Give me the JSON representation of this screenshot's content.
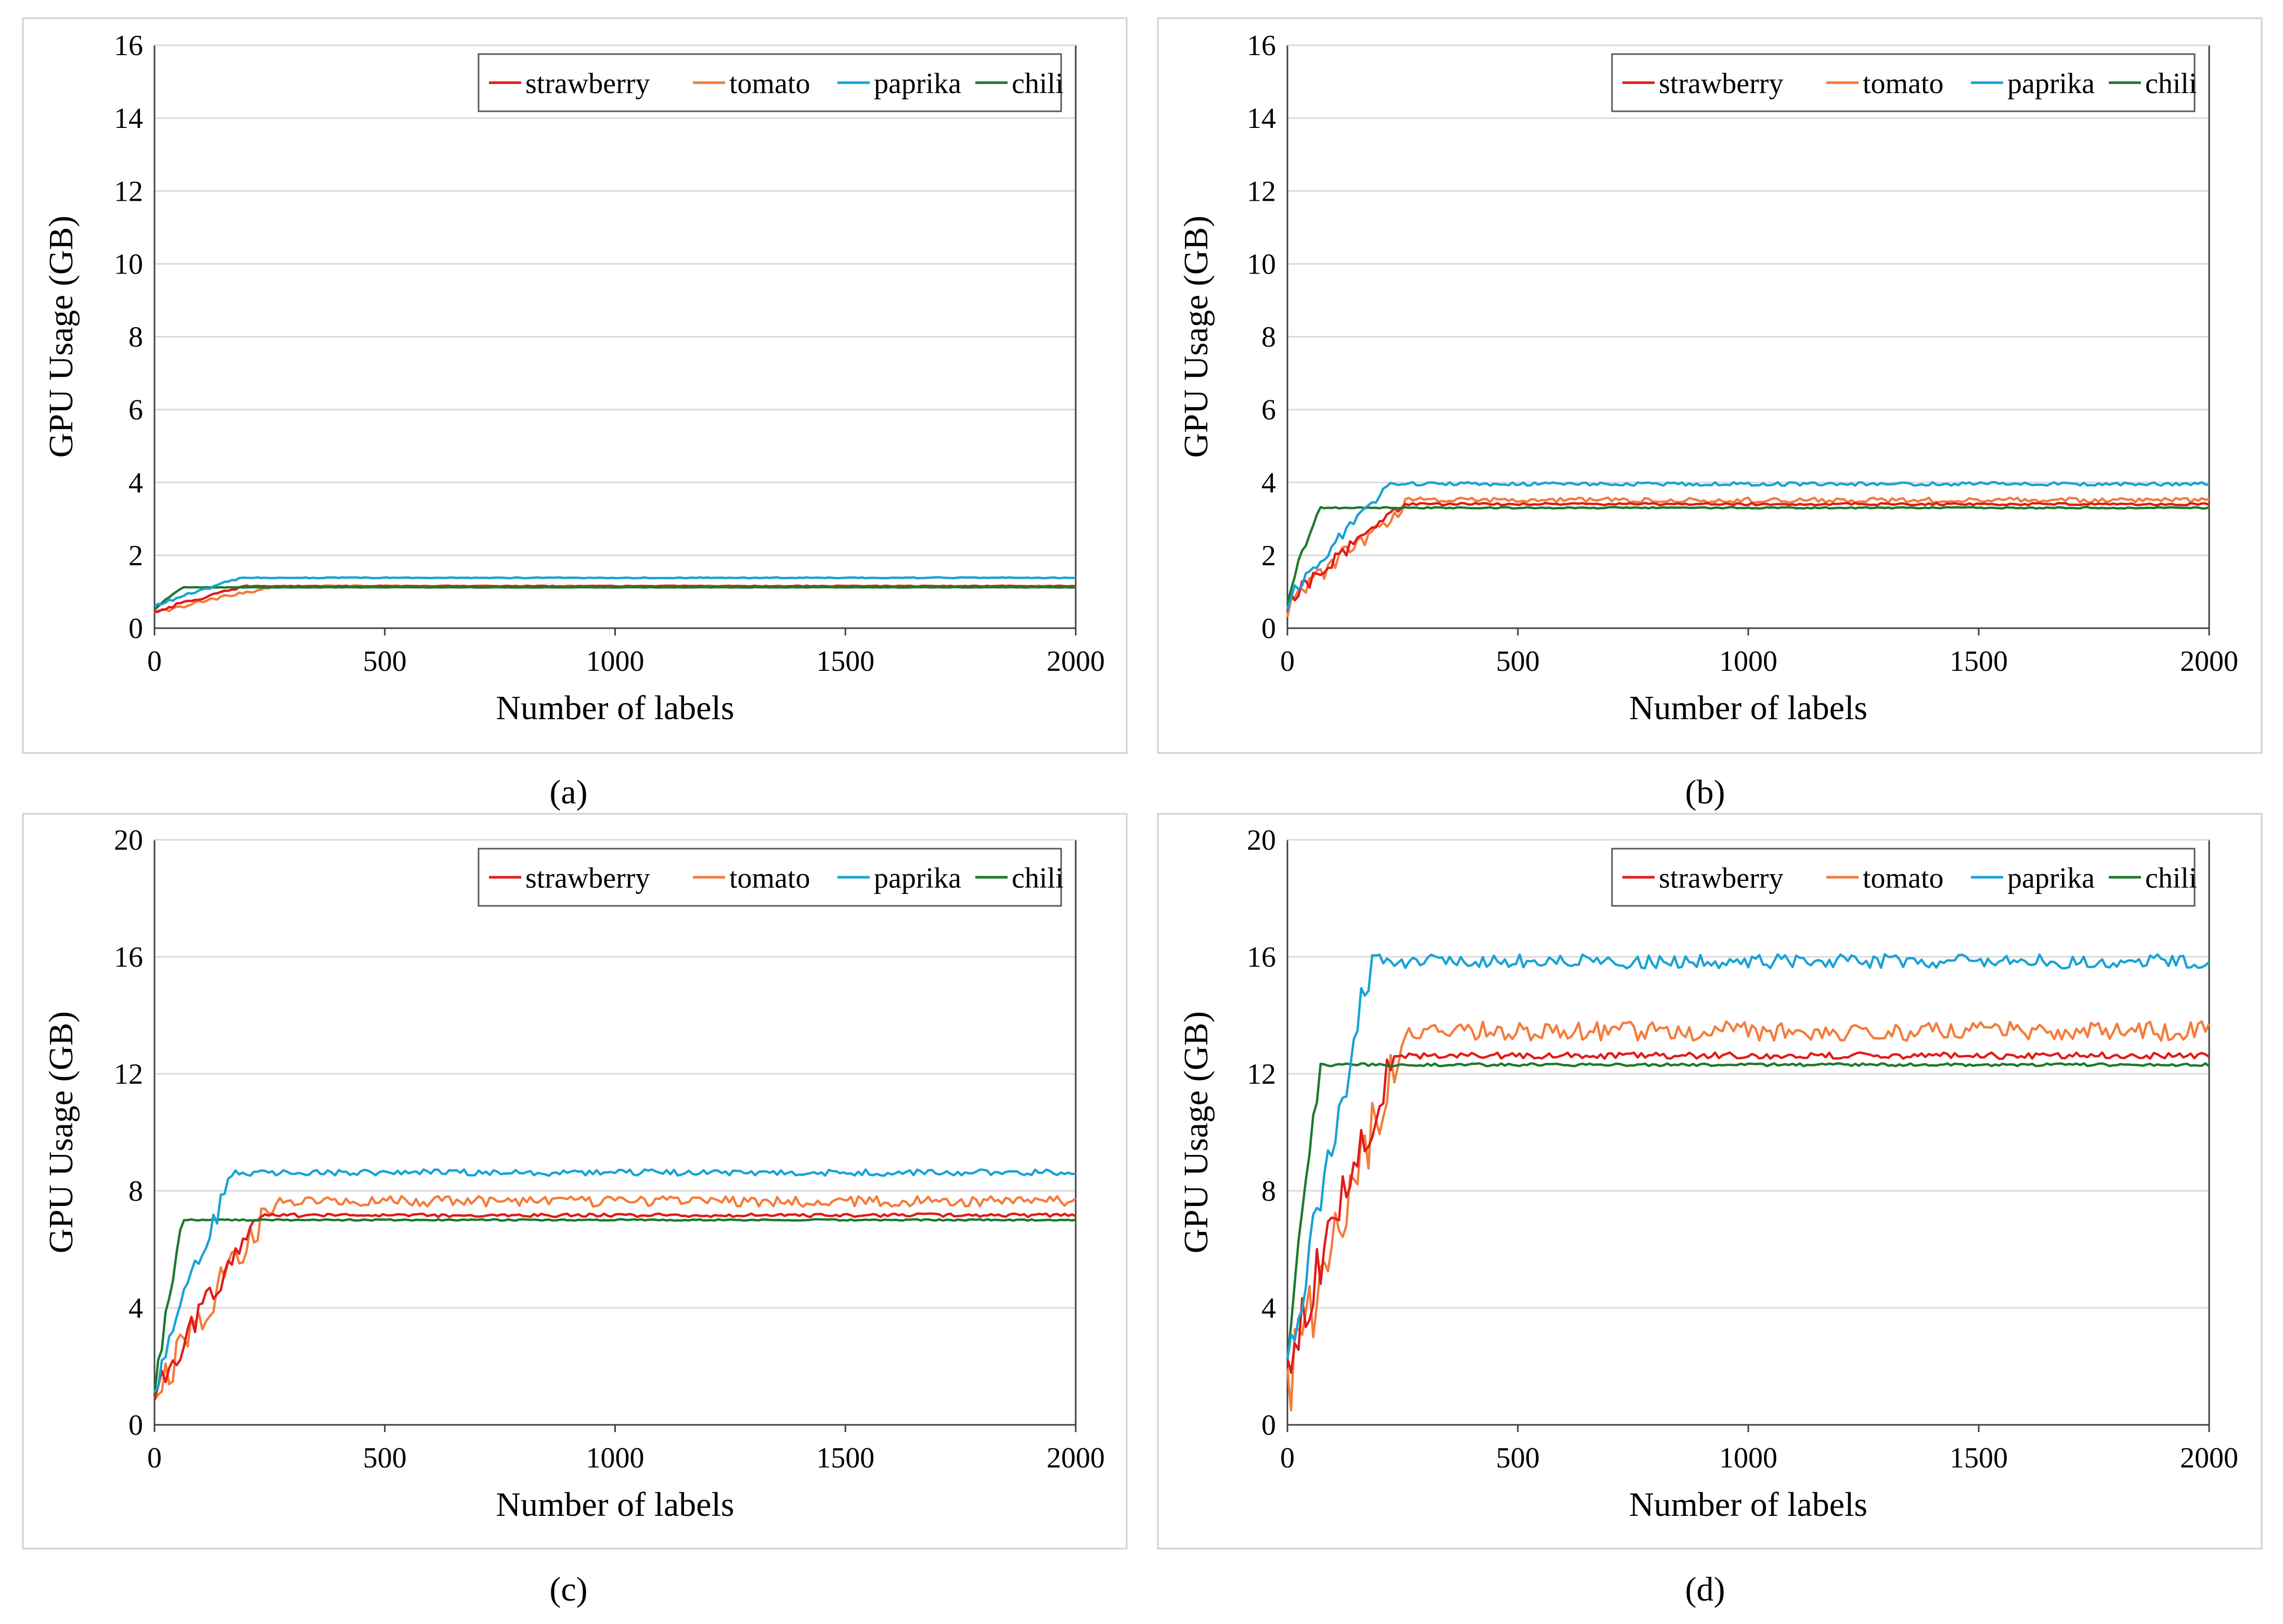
{
  "figure": {
    "panels": [
      "(a)",
      "(b)",
      "(c)",
      "(d)"
    ]
  },
  "colors": {
    "strawberry": "#e01b1b",
    "tomato": "#f47c3c",
    "paprika": "#19a2d6",
    "chili": "#1c7a2a",
    "grid": "#d9d9d9",
    "axis": "#404040",
    "frame": "#d0d0d0"
  },
  "chart_data": [
    {
      "panel": "a",
      "caption": "(a)",
      "type": "line",
      "xlabel": "Number of labels",
      "ylabel": "GPU Usage (GB)",
      "xlim": [
        0,
        2000
      ],
      "ylim": [
        0,
        16
      ],
      "xticks": [
        0,
        500,
        1000,
        1500,
        2000
      ],
      "yticks": [
        0,
        2,
        4,
        6,
        8,
        10,
        12,
        14,
        16
      ],
      "grid": true,
      "legend": "top-right",
      "series": [
        {
          "name": "strawberry",
          "key": "strawberry",
          "start": 0.45,
          "ramp": 200,
          "plateau": 1.15,
          "noise": 0.02,
          "amp": 0.1
        },
        {
          "name": "tomato",
          "key": "tomato",
          "start": 0.4,
          "ramp": 260,
          "plateau": 1.15,
          "noise": 0.03,
          "amp": 0.12
        },
        {
          "name": "paprika",
          "key": "paprika",
          "start": 0.6,
          "ramp": 190,
          "plateau": 1.38,
          "noise": 0.02,
          "amp": 0.1
        },
        {
          "name": "chili",
          "key": "chili",
          "start": 0.5,
          "ramp": 60,
          "plateau": 1.12,
          "noise": 0.01,
          "amp": 0.05
        }
      ]
    },
    {
      "panel": "b",
      "caption": "(b)",
      "type": "line",
      "xlabel": "Number of labels",
      "ylabel": "GPU Usage (GB)",
      "xlim": [
        0,
        2000
      ],
      "ylim": [
        0,
        16
      ],
      "xticks": [
        0,
        500,
        1000,
        1500,
        2000
      ],
      "yticks": [
        0,
        2,
        4,
        6,
        8,
        10,
        12,
        14,
        16
      ],
      "grid": true,
      "legend": "top-right",
      "series": [
        {
          "name": "strawberry",
          "key": "strawberry",
          "start": 0.7,
          "ramp": 250,
          "plateau": 3.4,
          "noise": 0.05,
          "amp": 0.4
        },
        {
          "name": "tomato",
          "key": "tomato",
          "start": 0.6,
          "ramp": 270,
          "plateau": 3.5,
          "noise": 0.12,
          "amp": 0.6
        },
        {
          "name": "paprika",
          "key": "paprika",
          "start": 0.7,
          "ramp": 220,
          "plateau": 3.95,
          "noise": 0.08,
          "amp": 0.4
        },
        {
          "name": "chili",
          "key": "chili",
          "start": 0.8,
          "ramp": 70,
          "plateau": 3.3,
          "noise": 0.03,
          "amp": 0.3
        }
      ]
    },
    {
      "panel": "c",
      "caption": "(c)",
      "type": "line",
      "xlabel": "Number of labels",
      "ylabel": "GPU Usage (GB)",
      "xlim": [
        0,
        2000
      ],
      "ylim": [
        0,
        20
      ],
      "xticks": [
        0,
        500,
        1000,
        1500,
        2000
      ],
      "yticks": [
        0,
        4,
        8,
        12,
        16,
        20
      ],
      "grid": true,
      "legend": "top-right",
      "series": [
        {
          "name": "strawberry",
          "key": "strawberry",
          "start": 1.0,
          "ramp": 230,
          "plateau": 7.15,
          "noise": 0.1,
          "amp": 1.0
        },
        {
          "name": "tomato",
          "key": "tomato",
          "start": 1.0,
          "ramp": 260,
          "plateau": 7.6,
          "noise": 0.3,
          "amp": 1.4
        },
        {
          "name": "paprika",
          "key": "paprika",
          "start": 1.2,
          "ramp": 170,
          "plateau": 8.6,
          "noise": 0.18,
          "amp": 1.0
        },
        {
          "name": "chili",
          "key": "chili",
          "start": 1.0,
          "ramp": 60,
          "plateau": 7.0,
          "noise": 0.04,
          "amp": 0.6
        }
      ]
    },
    {
      "panel": "d",
      "caption": "(d)",
      "type": "line",
      "xlabel": "Number of labels",
      "ylabel": "GPU Usage (GB)",
      "xlim": [
        0,
        2000
      ],
      "ylim": [
        0,
        20
      ],
      "xticks": [
        0,
        500,
        1000,
        1500,
        2000
      ],
      "yticks": [
        0,
        4,
        8,
        12,
        16,
        20
      ],
      "grid": true,
      "legend": "top-right",
      "series": [
        {
          "name": "strawberry",
          "key": "strawberry",
          "start": 1.8,
          "ramp": 230,
          "plateau": 12.6,
          "noise": 0.18,
          "amp": 2.0
        },
        {
          "name": "tomato",
          "key": "tomato",
          "start": 1.2,
          "ramp": 260,
          "plateau": 13.4,
          "noise": 0.55,
          "amp": 2.6
        },
        {
          "name": "paprika",
          "key": "paprika",
          "start": 1.6,
          "ramp": 180,
          "plateau": 15.8,
          "noise": 0.4,
          "amp": 2.0
        },
        {
          "name": "chili",
          "key": "chili",
          "start": 1.8,
          "ramp": 70,
          "plateau": 12.3,
          "noise": 0.08,
          "amp": 1.2
        }
      ]
    }
  ]
}
